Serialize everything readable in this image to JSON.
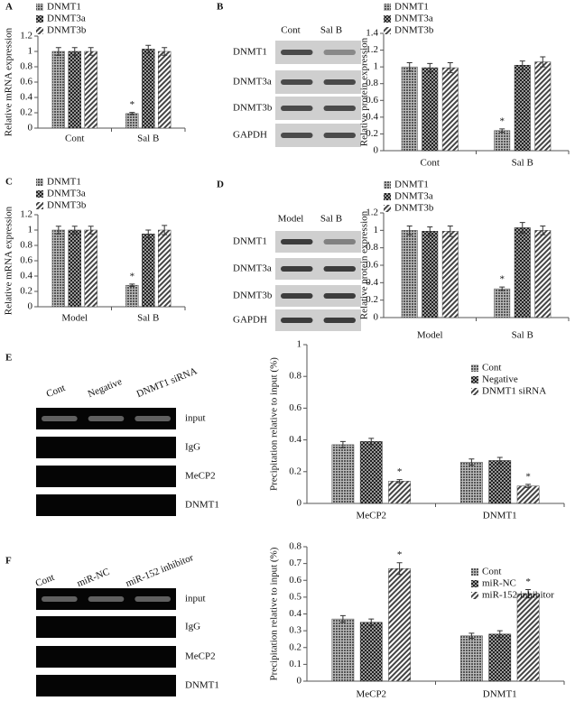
{
  "panel_labels": [
    "A",
    "B",
    "C",
    "D",
    "E",
    "F"
  ],
  "blots": [
    {
      "lanes": [
        "Cont",
        "Sal B"
      ],
      "rows": [
        "DNMT1",
        "DNMT3a",
        "DNMT3b",
        "GAPDH"
      ]
    },
    {
      "lanes": [
        "Model",
        "Sal B"
      ],
      "rows": [
        "DNMT1",
        "DNMT3a",
        "DNMT3b",
        "GAPDH"
      ]
    },
    {
      "lanes": [
        "Cont",
        "Negative",
        "DNMT1 siRNA"
      ],
      "rows": [
        "input",
        "IgG",
        "MeCP2",
        "DNMT1"
      ]
    },
    {
      "lanes": [
        "Cont",
        "miR-NC",
        "miR-152 inhibitor"
      ],
      "rows": [
        "input",
        "IgG",
        "MeCP2",
        "DNMT1"
      ]
    }
  ],
  "chart_data": [
    {
      "type": "bar",
      "y_label": "Relative mRNA expression",
      "categories": [
        "Cont",
        "Sal B"
      ],
      "ylim": [
        0,
        1.2
      ],
      "yticks": [
        0,
        0.2,
        0.4,
        0.6,
        0.8,
        1,
        1.2
      ],
      "legend": "upper left",
      "series": [
        {
          "name": "DNMT1",
          "color": "#555555",
          "pattern": "dots",
          "values": [
            1.0,
            0.19
          ],
          "errors": [
            0.05,
            0.015
          ],
          "marks": [
            null,
            "*"
          ]
        },
        {
          "name": "DNMT3a",
          "color": "#222222",
          "pattern": "checker",
          "values": [
            1.0,
            1.03
          ],
          "errors": [
            0.05,
            0.05
          ]
        },
        {
          "name": "DNMT3b",
          "color": "#444444",
          "pattern": "stripes",
          "values": [
            1.0,
            1.0
          ],
          "errors": [
            0.05,
            0.05
          ]
        }
      ]
    },
    {
      "type": "bar",
      "y_label": "Relative protein expression",
      "categories": [
        "Cont",
        "Sal B"
      ],
      "ylim": [
        0,
        1.4
      ],
      "yticks": [
        0,
        0.2,
        0.4,
        0.6,
        0.8,
        1,
        1.2,
        1.4
      ],
      "legend": "upper left",
      "series": [
        {
          "name": "DNMT1",
          "color": "#555555",
          "pattern": "dots",
          "values": [
            1.0,
            0.24
          ],
          "errors": [
            0.05,
            0.02
          ],
          "marks": [
            null,
            "*"
          ]
        },
        {
          "name": "DNMT3a",
          "color": "#222222",
          "pattern": "checker",
          "values": [
            0.99,
            1.02
          ],
          "errors": [
            0.05,
            0.05
          ]
        },
        {
          "name": "DNMT3b",
          "color": "#444444",
          "pattern": "stripes",
          "values": [
            0.99,
            1.06
          ],
          "errors": [
            0.06,
            0.06
          ]
        }
      ]
    },
    {
      "type": "bar",
      "y_label": "Relative mRNA expression",
      "categories": [
        "Model",
        "Sal B"
      ],
      "ylim": [
        0,
        1.2
      ],
      "yticks": [
        0,
        0.2,
        0.4,
        0.6,
        0.8,
        1,
        1.2
      ],
      "legend": "upper left",
      "series": [
        {
          "name": "DNMT1",
          "color": "#555555",
          "pattern": "dots",
          "values": [
            1.0,
            0.28
          ],
          "errors": [
            0.05,
            0.015
          ],
          "marks": [
            null,
            "*"
          ]
        },
        {
          "name": "DNMT3a",
          "color": "#222222",
          "pattern": "checker",
          "values": [
            1.0,
            0.95
          ],
          "errors": [
            0.05,
            0.05
          ]
        },
        {
          "name": "DNMT3b",
          "color": "#444444",
          "pattern": "stripes",
          "values": [
            1.0,
            1.0
          ],
          "errors": [
            0.05,
            0.06
          ]
        }
      ]
    },
    {
      "type": "bar",
      "y_label": "Relative protein expression",
      "categories": [
        "Model",
        "Sal B"
      ],
      "ylim": [
        0,
        1.2
      ],
      "yticks": [
        0,
        0.2,
        0.4,
        0.6,
        0.8,
        1,
        1.2
      ],
      "legend": "upper left",
      "series": [
        {
          "name": "DNMT1",
          "color": "#555555",
          "pattern": "dots",
          "values": [
            1.0,
            0.33
          ],
          "errors": [
            0.05,
            0.02
          ],
          "marks": [
            null,
            "*"
          ]
        },
        {
          "name": "DNMT3a",
          "color": "#222222",
          "pattern": "checker",
          "values": [
            0.99,
            1.03
          ],
          "errors": [
            0.05,
            0.06
          ]
        },
        {
          "name": "DNMT3b",
          "color": "#444444",
          "pattern": "stripes",
          "values": [
            0.99,
            1.0
          ],
          "errors": [
            0.06,
            0.05
          ]
        }
      ]
    },
    {
      "type": "bar",
      "y_label": "Precipitation relative to input (%)",
      "categories": [
        "MeCP2",
        "DNMT1"
      ],
      "ylim": [
        0,
        1
      ],
      "yticks": [
        0,
        0.2,
        0.4,
        0.6,
        0.8,
        1
      ],
      "legend": "upper right",
      "series": [
        {
          "name": "Cont",
          "color": "#555555",
          "pattern": "dots",
          "values": [
            0.37,
            0.26
          ],
          "errors": [
            0.02,
            0.02
          ]
        },
        {
          "name": "Negative",
          "color": "#222222",
          "pattern": "checker",
          "values": [
            0.39,
            0.27
          ],
          "errors": [
            0.02,
            0.02
          ]
        },
        {
          "name": "DNMT1 siRNA",
          "color": "#444444",
          "pattern": "stripes",
          "values": [
            0.14,
            0.11
          ],
          "errors": [
            0.01,
            0.01
          ],
          "marks": [
            "*",
            "*"
          ]
        }
      ]
    },
    {
      "type": "bar",
      "y_label": "Precipitation relative to input (%)",
      "categories": [
        "MeCP2",
        "DNMT1"
      ],
      "ylim": [
        0,
        0.8
      ],
      "yticks": [
        0,
        0.1,
        0.2,
        0.3,
        0.4,
        0.5,
        0.6,
        0.7,
        0.8
      ],
      "legend": "upper right",
      "series": [
        {
          "name": "Cont",
          "color": "#555555",
          "pattern": "dots",
          "values": [
            0.37,
            0.27
          ],
          "errors": [
            0.02,
            0.015
          ]
        },
        {
          "name": "miR-NC",
          "color": "#222222",
          "pattern": "checker",
          "values": [
            0.35,
            0.28
          ],
          "errors": [
            0.02,
            0.02
          ]
        },
        {
          "name": "miR-152 inhibitor",
          "color": "#444444",
          "pattern": "stripes",
          "values": [
            0.67,
            0.52
          ],
          "errors": [
            0.035,
            0.025
          ],
          "marks": [
            "*",
            "*"
          ]
        }
      ]
    }
  ]
}
